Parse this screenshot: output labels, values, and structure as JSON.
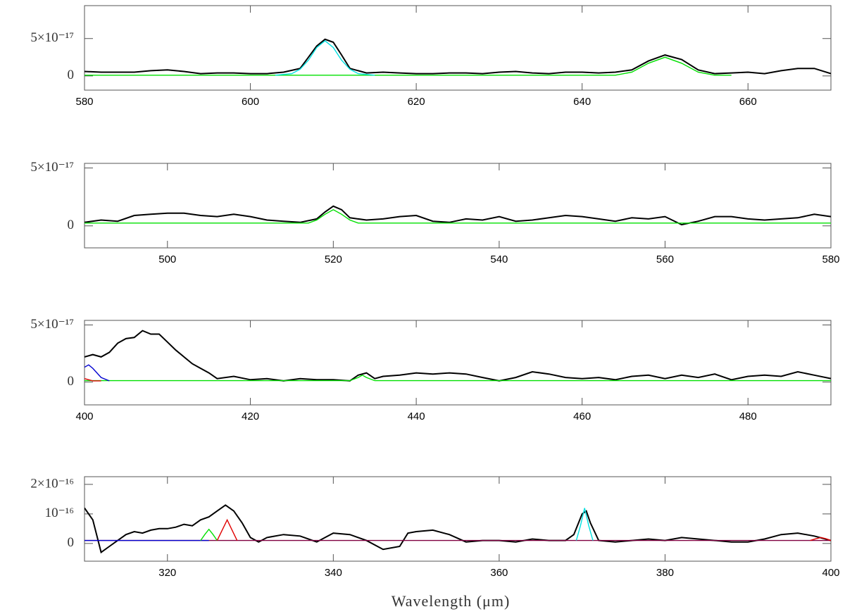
{
  "chart_data": [
    {
      "type": "line",
      "xlim": [
        580,
        670
      ],
      "xticks": [
        580,
        600,
        620,
        640,
        660
      ],
      "ylim": [
        -1.9e-17,
        9.4e-17
      ],
      "yticks": [
        0,
        {
          "value": 5e-17,
          "label": "5×10⁻¹⁷"
        }
      ],
      "series": [
        {
          "color": "#000000",
          "x": [
            580,
            582,
            584,
            586,
            588,
            590,
            592,
            594,
            596,
            598,
            600,
            602,
            604,
            606,
            607,
            608,
            609,
            610,
            611,
            612,
            614,
            616,
            618,
            620,
            622,
            624,
            626,
            628,
            630,
            632,
            634,
            636,
            638,
            640,
            642,
            644,
            646,
            648,
            650,
            652,
            654,
            656,
            658,
            660,
            662,
            664,
            666,
            668,
            670
          ],
          "values": [
            6e-18,
            5e-18,
            5e-18,
            5e-18,
            7e-18,
            8e-18,
            6e-18,
            3e-18,
            4e-18,
            4e-18,
            3e-18,
            3e-18,
            5e-18,
            1e-17,
            2.5e-17,
            4e-17,
            4.9e-17,
            4.5e-17,
            2.8e-17,
            1e-17,
            4e-18,
            5e-18,
            4e-18,
            3e-18,
            3e-18,
            4e-18,
            4e-18,
            3e-18,
            5e-18,
            6e-18,
            4e-18,
            3e-18,
            5e-18,
            5e-18,
            4e-18,
            5e-18,
            8e-18,
            2e-17,
            2.8e-17,
            2.2e-17,
            8e-18,
            3e-18,
            4e-18,
            5e-18,
            3e-18,
            7e-18,
            1e-17,
            1e-17,
            3e-18
          ]
        },
        {
          "color": "#00e000",
          "x": [
            580,
            644,
            646,
            648,
            650,
            652,
            654,
            656,
            658
          ],
          "values": [
            1e-18,
            1e-18,
            5e-18,
            1.7e-17,
            2.5e-17,
            1.7e-17,
            5e-18,
            1e-18,
            1e-18
          ]
        },
        {
          "color": "#00e0e0",
          "x": [
            603,
            605,
            606,
            607,
            608,
            609,
            610,
            611,
            612,
            613,
            615
          ],
          "values": [
            1e-18,
            3e-18,
            9e-18,
            2.1e-17,
            3.8e-17,
            4.7e-17,
            3.8e-17,
            2.1e-17,
            9e-18,
            3e-18,
            1e-18
          ]
        }
      ]
    },
    {
      "type": "line",
      "xlim": [
        490,
        580
      ],
      "xticks": [
        500,
        520,
        540,
        560,
        580
      ],
      "ylim": [
        -1.9e-17,
        5.4e-17
      ],
      "yticks": [
        0,
        {
          "value": 5e-17,
          "label": "5×10⁻¹⁷"
        }
      ],
      "series": [
        {
          "color": "#000000",
          "x": [
            490,
            492,
            494,
            496,
            498,
            500,
            502,
            504,
            506,
            508,
            510,
            512,
            514,
            516,
            518,
            519,
            520,
            521,
            522,
            524,
            526,
            528,
            530,
            532,
            534,
            536,
            538,
            540,
            542,
            544,
            546,
            548,
            550,
            552,
            554,
            556,
            558,
            560,
            562,
            564,
            566,
            568,
            570,
            572,
            574,
            576,
            578,
            580
          ],
          "values": [
            3e-18,
            5e-18,
            4e-18,
            9e-18,
            1e-17,
            1.1e-17,
            1.1e-17,
            9e-18,
            8e-18,
            1e-17,
            8e-18,
            5e-18,
            4e-18,
            3e-18,
            6e-18,
            1.2e-17,
            1.7e-17,
            1.4e-17,
            7e-18,
            5e-18,
            6e-18,
            8e-18,
            9e-18,
            4e-18,
            3e-18,
            6e-18,
            5e-18,
            8e-18,
            4e-18,
            5e-18,
            7e-18,
            9e-18,
            8e-18,
            6e-18,
            4e-18,
            7e-18,
            6e-18,
            8e-18,
            1e-18,
            4e-18,
            8e-18,
            8e-18,
            6e-18,
            5e-18,
            6e-18,
            7e-18,
            1e-17,
            8e-18
          ]
        },
        {
          "color": "#00e000",
          "x": [
            490,
            517,
            518,
            519,
            520,
            521,
            522,
            523,
            580
          ],
          "values": [
            2.4e-18,
            2.4e-18,
            5e-18,
            1e-17,
            1.4e-17,
            1e-17,
            5e-18,
            2.4e-18,
            2.4e-18
          ]
        }
      ]
    },
    {
      "type": "line",
      "xlim": [
        400,
        490
      ],
      "xticks": [
        400,
        420,
        440,
        460,
        480
      ],
      "ylim": [
        -2e-17,
        5.4e-17
      ],
      "yticks": [
        0,
        {
          "value": 5e-17,
          "label": "5×10⁻¹⁷"
        }
      ],
      "series": [
        {
          "color": "#000000",
          "x": [
            400,
            401,
            402,
            403,
            404,
            405,
            406,
            407,
            408,
            409,
            410,
            411,
            412,
            413,
            414,
            415,
            416,
            418,
            420,
            422,
            424,
            426,
            428,
            430,
            432,
            433,
            434,
            435,
            436,
            438,
            440,
            442,
            444,
            446,
            448,
            450,
            452,
            454,
            456,
            458,
            460,
            462,
            464,
            466,
            468,
            470,
            472,
            474,
            476,
            478,
            480,
            482,
            484,
            486,
            488,
            490
          ],
          "values": [
            2.2e-17,
            2.4e-17,
            2.2e-17,
            2.6e-17,
            3.4e-17,
            3.8e-17,
            3.9e-17,
            4.5e-17,
            4.2e-17,
            4.2e-17,
            3.5e-17,
            2.8e-17,
            2.2e-17,
            1.6e-17,
            1.2e-17,
            8e-18,
            3e-18,
            5e-18,
            2e-18,
            3e-18,
            1e-18,
            3e-18,
            2e-18,
            2e-18,
            1e-18,
            6e-18,
            8e-18,
            3e-18,
            5e-18,
            6e-18,
            8e-18,
            7e-18,
            8e-18,
            7e-18,
            4e-18,
            1e-18,
            4e-18,
            9e-18,
            7e-18,
            4e-18,
            3e-18,
            4e-18,
            2e-18,
            5e-18,
            6e-18,
            3e-18,
            6e-18,
            4e-18,
            7e-18,
            2e-18,
            5e-18,
            6e-18,
            5e-18,
            9e-18,
            6e-18,
            3e-18
          ]
        },
        {
          "color": "#00e000",
          "x": [
            400,
            432,
            433,
            433.5,
            434,
            435,
            490
          ],
          "values": [
            1.2e-18,
            1.2e-18,
            4e-18,
            6e-18,
            4e-18,
            1.2e-18,
            1.2e-18
          ]
        },
        {
          "color": "#0000d0",
          "x": [
            400,
            400.5,
            401,
            402,
            403
          ],
          "values": [
            1.3e-17,
            1.5e-17,
            1.2e-17,
            4e-18,
            1e-18
          ]
        },
        {
          "color": "#e00000",
          "x": [
            400,
            401,
            402
          ],
          "values": [
            3e-18,
            1e-18,
            1e-18
          ]
        }
      ]
    },
    {
      "type": "line",
      "xlim": [
        310,
        400
      ],
      "xticks": [
        320,
        340,
        360,
        380,
        400
      ],
      "ylim": [
        -6e-17,
        2.26e-16
      ],
      "yticks": [
        0,
        {
          "value": 1e-16,
          "label": "10⁻¹⁶"
        },
        {
          "value": 2e-16,
          "label": "2×10⁻¹⁶"
        }
      ],
      "x_label": "Wavelength (μm)",
      "series": [
        {
          "color": "#000000",
          "x": [
            310,
            311,
            312,
            313,
            314,
            315,
            316,
            317,
            318,
            319,
            320,
            321,
            322,
            323,
            324,
            325,
            326,
            327,
            328,
            329,
            330,
            331,
            332,
            334,
            336,
            338,
            340,
            342,
            344,
            346,
            348,
            349,
            350,
            352,
            354,
            356,
            358,
            360,
            362,
            364,
            366,
            368,
            369,
            370,
            370.5,
            371,
            372,
            374,
            376,
            378,
            380,
            382,
            384,
            386,
            388,
            390,
            392,
            394,
            396,
            398,
            400
          ],
          "values": [
            1.2e-16,
            8e-17,
            -3e-17,
            -1e-17,
            1e-17,
            3e-17,
            4e-17,
            3.5e-17,
            4.5e-17,
            5e-17,
            5e-17,
            5.5e-17,
            6.5e-17,
            6e-17,
            8e-17,
            9e-17,
            1.1e-16,
            1.3e-16,
            1.1e-16,
            7e-17,
            2e-17,
            5e-18,
            2e-17,
            3e-17,
            2.5e-17,
            5e-18,
            3.5e-17,
            3e-17,
            1e-17,
            -2e-17,
            -1e-17,
            3.5e-17,
            4e-17,
            4.5e-17,
            3e-17,
            5e-18,
            1e-17,
            1e-17,
            5e-18,
            1.5e-17,
            1e-17,
            1e-17,
            3e-17,
            1e-16,
            1.1e-16,
            7e-17,
            1e-17,
            5e-18,
            1e-17,
            1.5e-17,
            1e-17,
            2e-17,
            1.5e-17,
            1e-17,
            5e-18,
            5e-18,
            1.5e-17,
            3e-17,
            3.5e-17,
            2.5e-17,
            1e-17
          ]
        },
        {
          "color": "#800040",
          "x": [
            310,
            400
          ],
          "values": [
            1e-17,
            1e-17
          ]
        },
        {
          "color": "#0000d0",
          "x": [
            310,
            325
          ],
          "values": [
            1e-17,
            1e-17
          ]
        },
        {
          "color": "#00e000",
          "x": [
            324,
            324.5,
            325,
            325.5,
            326
          ],
          "values": [
            1e-17,
            3e-17,
            4.8e-17,
            3e-17,
            1e-17
          ]
        },
        {
          "color": "#e00000",
          "x": [
            326,
            326.6,
            327.2,
            327.8,
            328.4
          ],
          "values": [
            1e-17,
            4.5e-17,
            8e-17,
            4.5e-17,
            1e-17
          ]
        },
        {
          "color": "#00e0e0",
          "x": [
            369.3,
            369.8,
            370.3,
            370.8,
            371.3
          ],
          "values": [
            1e-17,
            6e-17,
            1.2e-16,
            6e-17,
            1e-17
          ]
        },
        {
          "color": "#e00000",
          "x": [
            397.5,
            398.2,
            398.8,
            399.4,
            400
          ],
          "values": [
            1e-17,
            1.6e-17,
            2e-17,
            1.6e-17,
            1e-17
          ]
        }
      ]
    }
  ]
}
